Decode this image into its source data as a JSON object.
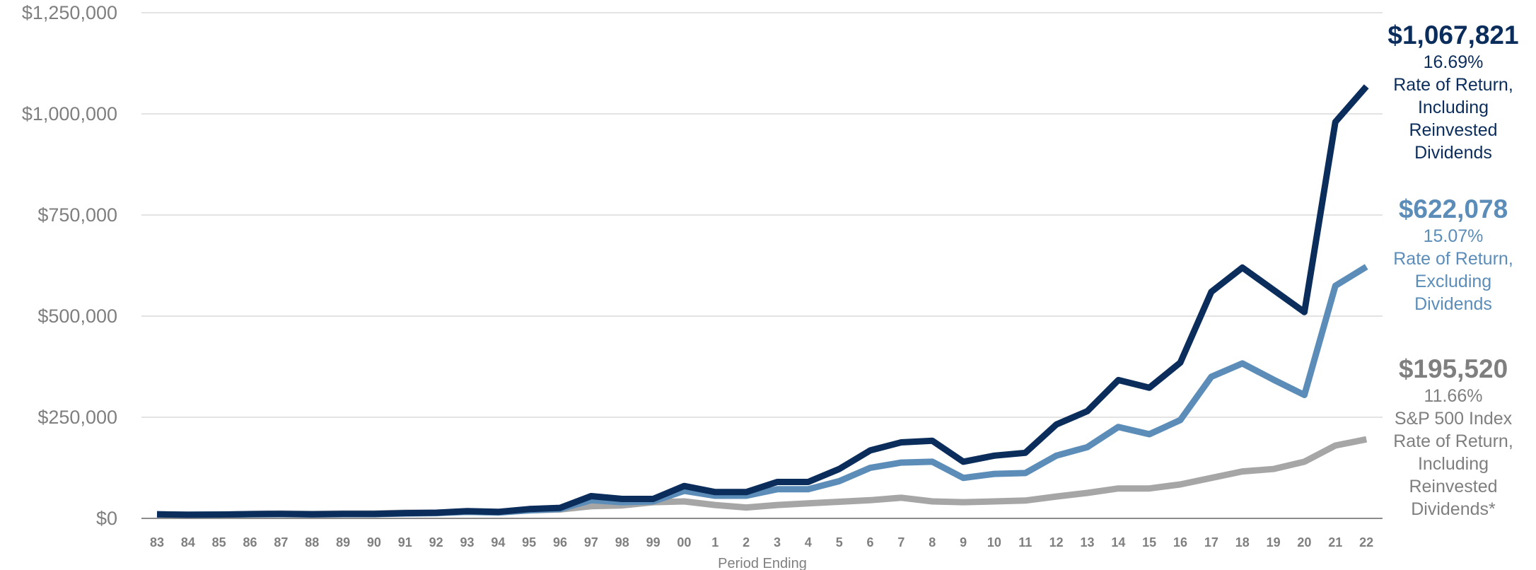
{
  "chart_data": {
    "type": "line",
    "title": "",
    "xlabel": "Period Ending",
    "ylabel": "",
    "ylim": [
      0,
      1250000
    ],
    "yticks": [
      0,
      250000,
      500000,
      750000,
      1000000,
      1250000
    ],
    "ytick_labels": [
      "$0",
      "$250,000",
      "$500,000",
      "$750,000",
      "$1,000,000",
      "$1,250,000"
    ],
    "grid": true,
    "categories": [
      "83",
      "84",
      "85",
      "86",
      "87",
      "88",
      "89",
      "90",
      "91",
      "92",
      "93",
      "94",
      "95",
      "96",
      "97",
      "98",
      "99",
      "00",
      "1",
      "2",
      "3",
      "4",
      "5",
      "6",
      "7",
      "8",
      "9",
      "10",
      "11",
      "12",
      "13",
      "14",
      "15",
      "16",
      "17",
      "18",
      "19",
      "20",
      "21",
      "22"
    ],
    "series": [
      {
        "name": "Rate of Return, Including Reinvested Dividends",
        "color": "#0b2d5b",
        "values": [
          10000,
          9000,
          9500,
          10500,
          11000,
          10000,
          11000,
          11000,
          13000,
          14000,
          18000,
          16000,
          23000,
          26000,
          55000,
          48000,
          48000,
          80000,
          65000,
          65000,
          90000,
          90000,
          122000,
          168000,
          188000,
          192000,
          140000,
          155000,
          162000,
          232000,
          265000,
          342000,
          323000,
          385000,
          560000,
          620000,
          565000,
          510000,
          980000,
          1067821
        ]
      },
      {
        "name": "Rate of Return, Excluding Dividends",
        "color": "#5b8db8",
        "values": [
          10000,
          9000,
          9500,
          10200,
          10500,
          9800,
          10500,
          10500,
          12000,
          13000,
          16000,
          14500,
          20000,
          23000,
          45000,
          40000,
          42000,
          68000,
          56000,
          56000,
          72000,
          72000,
          92000,
          125000,
          138000,
          140000,
          100000,
          110000,
          112000,
          155000,
          176000,
          226000,
          208000,
          243000,
          350000,
          383000,
          343000,
          305000,
          575000,
          622078
        ]
      },
      {
        "name": "S&P 500 Index Rate of Return, Including Reinvested Dividends*",
        "color": "#a6a6a6",
        "values": [
          10000,
          9000,
          9000,
          11000,
          12000,
          11000,
          12000,
          12000,
          14000,
          14000,
          16000,
          15000,
          20000,
          22000,
          30000,
          32000,
          40000,
          42000,
          33000,
          27000,
          33000,
          37000,
          41000,
          45000,
          51000,
          42000,
          40000,
          42000,
          44000,
          54000,
          63000,
          74000,
          74000,
          84000,
          100000,
          116000,
          122000,
          140000,
          180000,
          195520
        ]
      }
    ]
  },
  "legend": [
    {
      "value": "$1,067,821",
      "pct": "16.69%",
      "lines": [
        "Rate of Return,",
        "Including",
        "Reinvested",
        "Dividends"
      ],
      "color": "#0b2d5b"
    },
    {
      "value": "$622,078",
      "pct": "15.07%",
      "lines": [
        "Rate of Return,",
        "Excluding",
        "Dividends"
      ],
      "color": "#5b8db8"
    },
    {
      "value": "$195,520",
      "pct": "11.66%",
      "lines": [
        "S&P 500 Index",
        "Rate of Return,",
        "Including",
        "Reinvested",
        "Dividends*"
      ],
      "color": "#7f7f7f"
    }
  ]
}
